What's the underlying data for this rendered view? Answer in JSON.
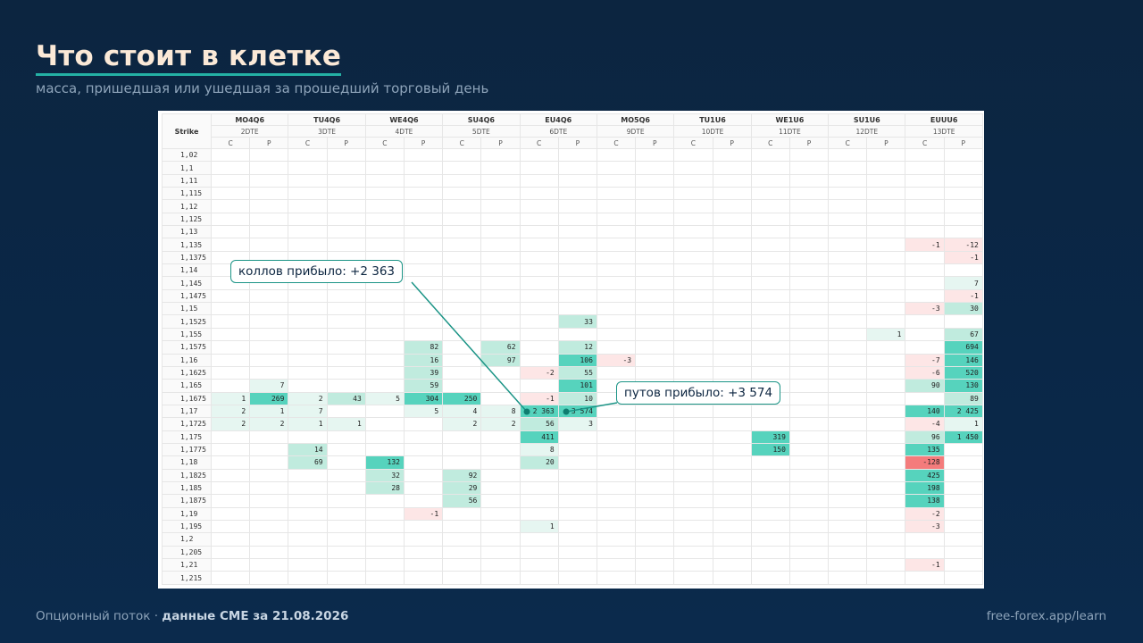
{
  "header": {
    "title": "Что стоит в клетке",
    "subtitle": "масса, пришедшая или ушедшая за прошедший торговый день"
  },
  "table": {
    "strike_header": "Strike",
    "expiries": [
      {
        "code": "MO4Q6",
        "dte": "2DTE"
      },
      {
        "code": "TU4Q6",
        "dte": "3DTE"
      },
      {
        "code": "WE4Q6",
        "dte": "4DTE"
      },
      {
        "code": "SU4Q6",
        "dte": "5DTE"
      },
      {
        "code": "EU4Q6",
        "dte": "6DTE"
      },
      {
        "code": "MO5Q6",
        "dte": "9DTE"
      },
      {
        "code": "TU1U6",
        "dte": "10DTE"
      },
      {
        "code": "WE1U6",
        "dte": "11DTE"
      },
      {
        "code": "SU1U6",
        "dte": "12DTE"
      },
      {
        "code": "EUUU6",
        "dte": "13DTE"
      }
    ],
    "call_label": "C",
    "put_label": "P",
    "rows": [
      {
        "strike": "1,02",
        "cells": {}
      },
      {
        "strike": "1,1",
        "cells": {}
      },
      {
        "strike": "1,11",
        "cells": {}
      },
      {
        "strike": "1,115",
        "cells": {}
      },
      {
        "strike": "1,12",
        "cells": {}
      },
      {
        "strike": "1,125",
        "cells": {}
      },
      {
        "strike": "1,13",
        "cells": {}
      },
      {
        "strike": "1,135",
        "cells": {
          "18": "-1",
          "19": "-12"
        }
      },
      {
        "strike": "1,1375",
        "cells": {
          "19": "-1"
        }
      },
      {
        "strike": "1,14",
        "cells": {}
      },
      {
        "strike": "1,145",
        "cells": {
          "19": "7"
        }
      },
      {
        "strike": "1,1475",
        "cells": {
          "19": "-1"
        }
      },
      {
        "strike": "1,15",
        "cells": {
          "18": "-3",
          "19": "30"
        }
      },
      {
        "strike": "1,1525",
        "cells": {
          "9": "33"
        }
      },
      {
        "strike": "1,155",
        "cells": {
          "17": "1",
          "19": "67"
        }
      },
      {
        "strike": "1,1575",
        "cells": {
          "5": "82",
          "7": "62",
          "9": "12",
          "19": "694"
        }
      },
      {
        "strike": "1,16",
        "cells": {
          "5": "16",
          "7": "97",
          "9": "106",
          "10": "-3",
          "18": "-7",
          "19": "146"
        }
      },
      {
        "strike": "1,1625",
        "cells": {
          "5": "39",
          "8": "-2",
          "9": "55",
          "18": "-6",
          "19": "520"
        }
      },
      {
        "strike": "1,165",
        "cells": {
          "1": "7",
          "5": "59",
          "9": "101",
          "18": "90",
          "19": "130"
        }
      },
      {
        "strike": "1,1675",
        "cells": {
          "0": "1",
          "1": "269",
          "2": "2",
          "3": "43",
          "4": "5",
          "5": "304",
          "6": "250",
          "8": "-1",
          "9": "10",
          "19": "89"
        }
      },
      {
        "strike": "1,17",
        "cells": {
          "0": "2",
          "1": "1",
          "2": "7",
          "5": "5",
          "6": "4",
          "7": "8",
          "8": "2 363",
          "9": "3 574",
          "18": "140",
          "19": "2 425"
        }
      },
      {
        "strike": "1,1725",
        "cells": {
          "0": "2",
          "1": "2",
          "2": "1",
          "3": "1",
          "6": "2",
          "7": "2",
          "8": "56",
          "9": "3",
          "18": "-4",
          "19": "1"
        }
      },
      {
        "strike": "1,175",
        "cells": {
          "8": "411",
          "14": "319",
          "18": "96",
          "19": "1 450"
        }
      },
      {
        "strike": "1,1775",
        "cells": {
          "2": "14",
          "8": "8",
          "14": "150",
          "18": "135"
        }
      },
      {
        "strike": "1,18",
        "cells": {
          "2": "69",
          "4": "132",
          "8": "20",
          "18": "-128"
        }
      },
      {
        "strike": "1,1825",
        "cells": {
          "4": "32",
          "6": "92",
          "18": "425"
        }
      },
      {
        "strike": "1,185",
        "cells": {
          "4": "28",
          "6": "29",
          "18": "198"
        }
      },
      {
        "strike": "1,1875",
        "cells": {
          "6": "56",
          "18": "138"
        }
      },
      {
        "strike": "1,19",
        "cells": {
          "5": "-1",
          "18": "-2"
        }
      },
      {
        "strike": "1,195",
        "cells": {
          "8": "1",
          "18": "-3"
        }
      },
      {
        "strike": "1,2",
        "cells": {}
      },
      {
        "strike": "1,205",
        "cells": {}
      },
      {
        "strike": "1,21",
        "cells": {
          "18": "-1"
        }
      },
      {
        "strike": "1,215",
        "cells": {}
      }
    ]
  },
  "callouts": {
    "calls": "коллов прибыло: +2 363",
    "puts": "путов прибыло: +3 574"
  },
  "footer": {
    "source_prefix": "Опционный поток · ",
    "source_bold": "данные CME за 21.08.2026",
    "site": "free-forex.app/learn"
  }
}
